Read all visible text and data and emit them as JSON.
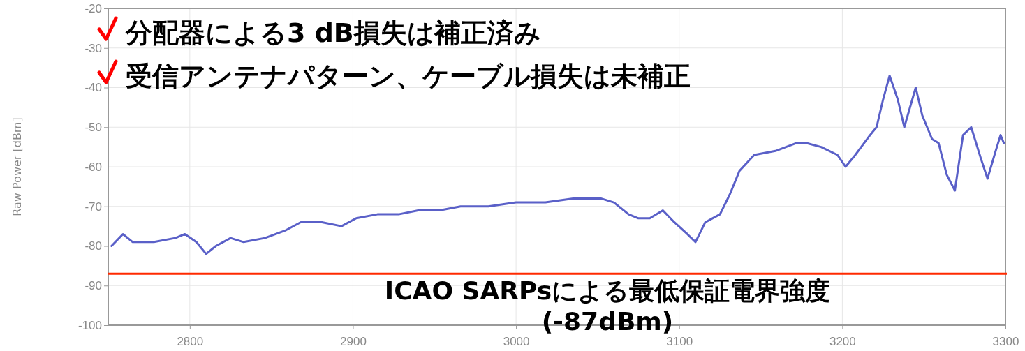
{
  "chart_data": {
    "type": "line",
    "ylabel": "Raw Power [dBm]",
    "annotations": [
      "分配器による3 dB損失は補正済み",
      "受信アンテナパターン、ケーブル損失は未補正"
    ],
    "x": [
      2752,
      2759,
      2765,
      2778,
      2791,
      2797,
      2804,
      2810,
      2816,
      2825,
      2833,
      2846,
      2859,
      2868,
      2881,
      2893,
      2902,
      2915,
      2928,
      2940,
      2953,
      2966,
      2983,
      3000,
      3018,
      3035,
      3052,
      3060,
      3069,
      3075,
      3082,
      3090,
      3097,
      3105,
      3110,
      3116,
      3125,
      3131,
      3137,
      3146,
      3159,
      3172,
      3178,
      3187,
      3197,
      3202,
      3208,
      3217,
      3221,
      3225,
      3229,
      3234,
      3238,
      3245,
      3249,
      3255,
      3259,
      3264,
      3269,
      3274,
      3279,
      3285,
      3289,
      3294,
      3297,
      3299
    ],
    "series": [
      {
        "color": "#5a60c8",
        "values": [
          -80,
          -77,
          -79,
          -79,
          -78,
          -77,
          -79,
          -82,
          -80,
          -78,
          -79,
          -78,
          -76,
          -74,
          -74,
          -75,
          -73,
          -72,
          -72,
          -71,
          -71,
          -70,
          -70,
          -69,
          -69,
          -68,
          -68,
          -69,
          -72,
          -73,
          -73,
          -71,
          -74,
          -77,
          -79,
          -74,
          -72,
          -67,
          -61,
          -57,
          -56,
          -54,
          -54,
          -55,
          -57,
          -60,
          -57,
          -52,
          -50,
          -43,
          -37,
          -43,
          -50,
          -40,
          -47,
          -53,
          -54,
          -62,
          -66,
          -52,
          -50,
          -58,
          -63,
          -56,
          -52,
          -54
        ]
      }
    ],
    "xlim": [
      2750,
      3300
    ],
    "xticks": [
      2800,
      2900,
      3000,
      3100,
      3200,
      3300
    ],
    "ylim": [
      -100,
      -20
    ],
    "yticks": [
      -100,
      -90,
      -80,
      -70,
      -60,
      -50,
      -40,
      -30,
      -20
    ],
    "grid": true,
    "marker": "none",
    "line_style": "solid",
    "ref_lines": [
      {
        "axis": "y",
        "value": -87,
        "label": "ICAO SARPsによる最低保証電界強度\n(-87dBm)",
        "color": "#ff2a00",
        "line_style": "solid"
      }
    ]
  }
}
